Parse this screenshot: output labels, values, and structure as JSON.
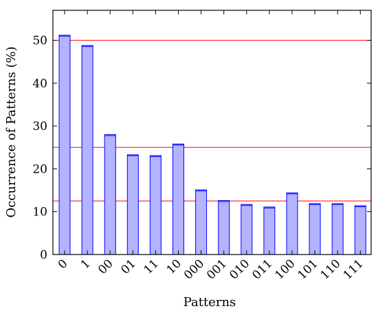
{
  "chart_data": {
    "type": "bar",
    "categories": [
      "0",
      "1",
      "00",
      "01",
      "11",
      "10",
      "000",
      "001",
      "010",
      "011",
      "100",
      "101",
      "110",
      "111"
    ],
    "series": [
      {
        "values": [
          51.2,
          48.8,
          28.0,
          23.3,
          23.1,
          25.8,
          15.1,
          12.6,
          11.7,
          11.1,
          14.4,
          11.9,
          11.9,
          11.4
        ]
      }
    ],
    "xlabel": "Patterns",
    "ylabel": "Occurrence of Patterns (%)",
    "ylim": [
      0,
      57
    ],
    "yticks": [
      "0",
      "10",
      "20",
      "30",
      "40",
      "50"
    ],
    "reference_lines": [
      50,
      25,
      12.5
    ],
    "grid": false,
    "legend": "none",
    "colors": {
      "bar_fill": "#b3b3ff",
      "bar_stroke": "#0000ff",
      "reference_line": "#ff0000",
      "axis": "#000000"
    }
  }
}
